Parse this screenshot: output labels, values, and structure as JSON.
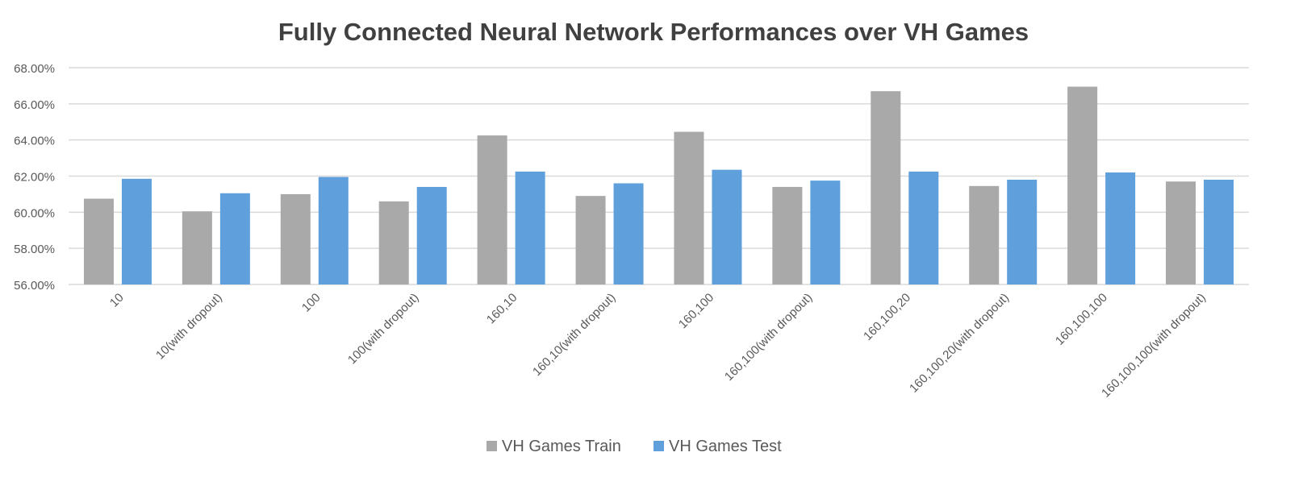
{
  "chart_data": {
    "type": "bar",
    "title": "Fully Connected Neural Network Performances over VH Games",
    "xlabel": "",
    "ylabel": "",
    "categories": [
      "10",
      "10(with dropout)",
      "100",
      "100(with dropout)",
      "160,10",
      "160,10(with dropout)",
      "160,100",
      "160,100(with dropout)",
      "160,100,20",
      "160,100,20(with dropout)",
      "160,100,100",
      "160,100,100(with dropout)"
    ],
    "series": [
      {
        "name": "VH Games Train",
        "color": "#a9a9a9",
        "values": [
          60.75,
          60.05,
          61.0,
          60.6,
          64.25,
          60.9,
          64.45,
          61.4,
          66.7,
          61.45,
          66.95,
          61.7
        ]
      },
      {
        "name": "VH Games Test",
        "color": "#5fa0dc",
        "values": [
          61.85,
          61.05,
          61.95,
          61.4,
          62.25,
          61.6,
          62.35,
          61.75,
          62.25,
          61.8,
          62.2,
          61.8
        ]
      }
    ],
    "ylim": [
      56,
      68
    ],
    "yticks": [
      "56.00%",
      "58.00%",
      "60.00%",
      "62.00%",
      "64.00%",
      "66.00%",
      "68.00%"
    ],
    "grid": true,
    "legend_position": "bottom"
  }
}
